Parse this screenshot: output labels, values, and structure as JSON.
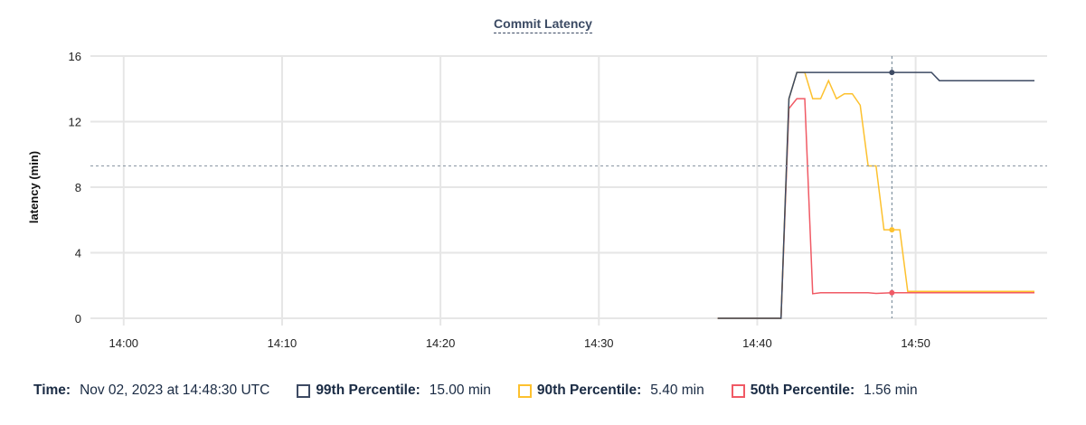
{
  "chart_data": {
    "type": "line",
    "title": "Commit Latency",
    "xlabel": "",
    "ylabel": "latency (min)",
    "xlim": [
      "13:57:54",
      "14:58:18"
    ],
    "ylim": [
      0,
      16
    ],
    "x_ticks": [
      "14:00",
      "14:10",
      "14:20",
      "14:30",
      "14:40",
      "14:50"
    ],
    "y_ticks": [
      0,
      4,
      8,
      12,
      16
    ],
    "grid": true,
    "legend_position": "bottom",
    "crosshair": {
      "x": "14:48:30",
      "y": 9.3
    },
    "series": [
      {
        "name": "99th Percentile",
        "color": "#3d4a63",
        "x": [
          "14:37:30",
          "14:41:30",
          "14:42:00",
          "14:42:30",
          "14:43:00",
          "14:48:30",
          "14:51:00",
          "14:51:30",
          "14:57:30"
        ],
        "values": [
          0,
          0,
          13.4,
          15,
          15,
          15,
          15,
          14.5,
          14.5
        ]
      },
      {
        "name": "90th Percentile",
        "color": "#fdc12e",
        "x": [
          "14:37:30",
          "14:41:30",
          "14:42:00",
          "14:42:30",
          "14:43:00",
          "14:43:30",
          "14:44:00",
          "14:44:30",
          "14:45:00",
          "14:45:30",
          "14:46:00",
          "14:46:30",
          "14:47:00",
          "14:47:30",
          "14:48:00",
          "14:48:30",
          "14:49:00",
          "14:49:30",
          "14:57:30"
        ],
        "values": [
          0,
          0,
          13.4,
          15,
          15,
          13.4,
          13.4,
          14.5,
          13.4,
          13.7,
          13.7,
          13.0,
          9.3,
          9.3,
          5.4,
          5.4,
          5.4,
          1.64,
          1.64
        ]
      },
      {
        "name": "50th Percentile",
        "color": "#f05a65",
        "x": [
          "14:37:30",
          "14:41:30",
          "14:42:00",
          "14:42:30",
          "14:43:00",
          "14:43:30",
          "14:44:00",
          "14:47:00",
          "14:47:30",
          "14:48:30",
          "14:57:30"
        ],
        "values": [
          0,
          0,
          12.8,
          13.4,
          13.4,
          1.5,
          1.56,
          1.56,
          1.52,
          1.56,
          1.56
        ]
      }
    ]
  },
  "legend": {
    "time_label": "Time:",
    "time_value": "Nov 02, 2023 at 14:48:30 UTC",
    "items": [
      {
        "label": "99th Percentile:",
        "value": "15.00 min",
        "color": "#3d4a63"
      },
      {
        "label": "90th Percentile:",
        "value": "5.40 min",
        "color": "#fdc12e"
      },
      {
        "label": "50th Percentile:",
        "value": "1.56 min",
        "color": "#f05a65"
      }
    ]
  }
}
